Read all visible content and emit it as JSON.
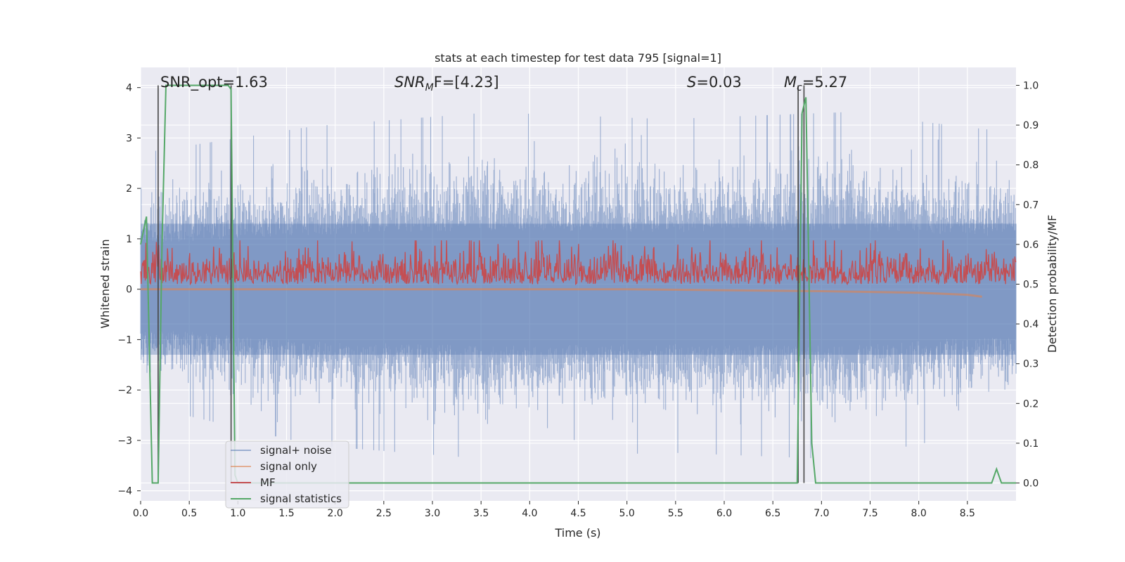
{
  "chart_data": {
    "type": "line",
    "title": "stats at each timestep for test data 795 [signal=1]",
    "xlabel": "Time (s)",
    "ylabel_left": "Whitened strain",
    "ylabel_right": "Detection probability/MF",
    "xlim": [
      0.0,
      9.0
    ],
    "ylim_left": [
      -4.2,
      4.4
    ],
    "ylim_right": [
      -0.045,
      1.045
    ],
    "xticks": [
      "0.0",
      "0.5",
      "1.0",
      "1.5",
      "2.0",
      "2.5",
      "3.0",
      "3.5",
      "4.0",
      "4.5",
      "5.0",
      "5.5",
      "6.0",
      "6.5",
      "7.0",
      "7.5",
      "8.0",
      "8.5"
    ],
    "yticks_left": [
      "4",
      "3",
      "2",
      "1",
      "0",
      "−1",
      "−2",
      "−3",
      "−4"
    ],
    "yticks_right": [
      "1.0",
      "0.9",
      "0.8",
      "0.7",
      "0.6",
      "0.5",
      "0.4",
      "0.3",
      "0.2",
      "0.1",
      "0.0"
    ],
    "grid": true,
    "legend_placement": "lower-left",
    "annotations": {
      "snr_opt": "SNR_opt=1.63",
      "snr_mf_base": "SNR",
      "snr_mf_sub": "M",
      "snr_mf_rest": "F=[4.23]",
      "s_label": "S",
      "s_value": "=0.03",
      "mc_base": "M",
      "mc_sub": "c",
      "mc_value": "=5.27"
    },
    "series": [
      {
        "name": "signal+ noise",
        "color": "#4c72b0",
        "axis": "left",
        "envelope_upper": [
          2.0,
          2.4,
          2.6,
          2.5,
          2.6,
          2.3
        ],
        "envelope_lower": [
          -1.7,
          -2.3,
          -2.5,
          -2.4,
          -2.5,
          -2.0
        ],
        "peak_max": 3.6,
        "peak_min": -3.6
      },
      {
        "name": "signal only",
        "color": "#dd8452",
        "axis": "left",
        "x": [
          0.0,
          5.0,
          6.0,
          7.0,
          8.0,
          8.5,
          8.65
        ],
        "y": [
          0.0,
          0.0,
          -0.02,
          -0.04,
          -0.07,
          -0.11,
          -0.15
        ]
      },
      {
        "name": "MF",
        "color": "#c44e52",
        "axis": "right",
        "baseline": 0.5,
        "typical_max": 0.58,
        "peak_max": 0.61
      },
      {
        "name": "signal statistics",
        "color": "#55a868",
        "axis": "right",
        "x": [
          0.0,
          0.06,
          0.12,
          0.18,
          0.22,
          0.26,
          0.9,
          0.93,
          0.97,
          1.0,
          6.75,
          6.8,
          6.84,
          6.9,
          6.94,
          8.75,
          8.8,
          8.85,
          9.0
        ],
        "y": [
          0.6,
          0.67,
          0.0,
          0.0,
          0.6,
          1.0,
          1.0,
          0.99,
          0.02,
          0.0,
          0.0,
          0.93,
          0.97,
          0.1,
          0.0,
          0.0,
          0.035,
          0.0,
          0.0
        ]
      }
    ],
    "event_markers_x": [
      0.18,
      0.93,
      6.76,
      6.82
    ]
  }
}
